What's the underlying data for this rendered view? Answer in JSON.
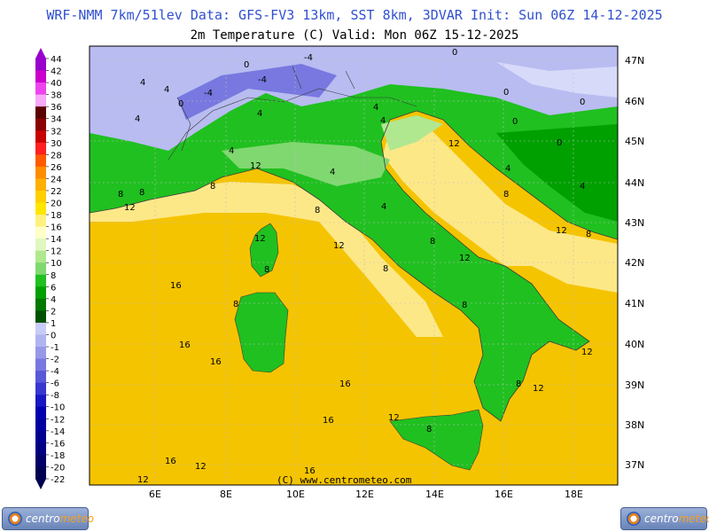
{
  "header": {
    "line1": "WRF-NMM 7km/51lev  Data: GFS-FV3 13km, SST 8km, 3DVAR  Init: Sun 06Z 14-12-2025",
    "line2": "2m Temperature (C)  Valid: Mon 06Z 15-12-2025"
  },
  "map": {
    "lat_labels": [
      "47N",
      "46N",
      "45N",
      "44N",
      "43N",
      "42N",
      "41N",
      "40N",
      "39N",
      "38N",
      "37N"
    ],
    "lon_labels": [
      "6E",
      "8E",
      "10E",
      "12E",
      "14E",
      "16E",
      "18E"
    ],
    "credit": "(C) www.centrometeo.com"
  },
  "colorbar": {
    "labels": [
      "44",
      "42",
      "40",
      "38",
      "36",
      "34",
      "32",
      "30",
      "28",
      "26",
      "24",
      "22",
      "20",
      "18",
      "16",
      "14",
      "12",
      "10",
      "8",
      "6",
      "4",
      "2",
      "1",
      "0",
      "-1",
      "-2",
      "-4",
      "-6",
      "-8",
      "-10",
      "-12",
      "-14",
      "-16",
      "-18",
      "-20",
      "-22"
    ],
    "colors": [
      "#9900cc",
      "#cc00cc",
      "#ee44ee",
      "#f7a8f7",
      "#5a0000",
      "#8b0000",
      "#c80000",
      "#ff2020",
      "#ff5a00",
      "#ff8c00",
      "#ffb000",
      "#ffd000",
      "#ffe600",
      "#fff080",
      "#ffffc8",
      "#e0f8c0",
      "#b0e890",
      "#80d870",
      "#20c020",
      "#00a000",
      "#007800",
      "#005000",
      "#c8ccf8",
      "#b0b4f0",
      "#9898e8",
      "#7878e0",
      "#5858d8",
      "#3838d0",
      "#1818c0",
      "#0000b0",
      "#0000a0",
      "#000090",
      "#000080",
      "#000068",
      "#000050"
    ]
  },
  "contour_labels": [
    {
      "t": "16"
    },
    {
      "t": "16"
    },
    {
      "t": "16"
    },
    {
      "t": "16"
    },
    {
      "t": "16"
    },
    {
      "t": "16"
    },
    {
      "t": "16"
    },
    {
      "t": "12"
    },
    {
      "t": "12"
    },
    {
      "t": "12"
    },
    {
      "t": "12"
    },
    {
      "t": "12"
    },
    {
      "t": "12"
    },
    {
      "t": "12"
    },
    {
      "t": "12"
    },
    {
      "t": "12"
    },
    {
      "t": "12"
    },
    {
      "t": "12"
    },
    {
      "t": "12"
    },
    {
      "t": "8"
    },
    {
      "t": "8"
    },
    {
      "t": "8"
    },
    {
      "t": "8"
    },
    {
      "t": "8"
    },
    {
      "t": "8"
    },
    {
      "t": "8"
    },
    {
      "t": "8"
    },
    {
      "t": "8"
    },
    {
      "t": "8"
    },
    {
      "t": "8"
    },
    {
      "t": "8"
    },
    {
      "t": "8"
    },
    {
      "t": "4"
    },
    {
      "t": "4"
    },
    {
      "t": "4"
    },
    {
      "t": "4"
    },
    {
      "t": "4"
    },
    {
      "t": "4"
    },
    {
      "t": "4"
    },
    {
      "t": "4"
    },
    {
      "t": "4"
    },
    {
      "t": "4"
    },
    {
      "t": "4"
    },
    {
      "t": "0"
    },
    {
      "t": "0"
    },
    {
      "t": "0"
    },
    {
      "t": "0"
    },
    {
      "t": "0"
    },
    {
      "t": "0"
    },
    {
      "t": "0"
    },
    {
      "t": "-4"
    },
    {
      "t": "-4"
    },
    {
      "t": "-4"
    }
  ],
  "logos": {
    "left": {
      "a": "centro",
      "b": "meteo"
    },
    "right": {
      "a": "centro",
      "b": "meteo"
    }
  }
}
